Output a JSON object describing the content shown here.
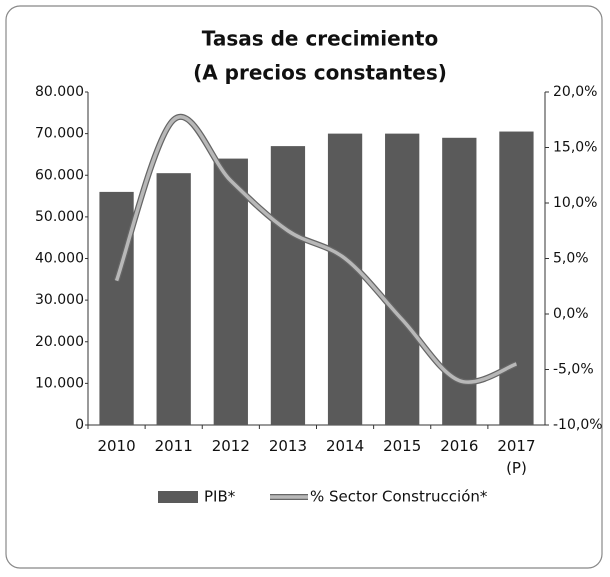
{
  "chart_data": {
    "type": "bar_line",
    "title": "Tasas de crecimiento",
    "subtitle": "(A precios constantes)",
    "categories": [
      "2010",
      "2011",
      "2012",
      "2013",
      "2014",
      "2015",
      "2016",
      "2017\n(P)"
    ],
    "series": [
      {
        "name": "PIB*",
        "type": "bar",
        "color": "#5a5a5a",
        "values": [
          56000,
          60500,
          64000,
          67000,
          70000,
          70000,
          69000,
          70500
        ]
      },
      {
        "name": "% Sector Construcción*",
        "type": "line",
        "axis": "y2",
        "color": "#b8b8b8",
        "values": [
          3,
          17.5,
          12,
          7.5,
          5,
          -0.5,
          -6,
          -4.5
        ]
      }
    ],
    "ylim": [
      0,
      80000
    ],
    "yticks": [
      0,
      {
        "value": 10000,
        "label": "10.000"
      },
      {
        "value": 20000,
        "label": "20.000"
      },
      {
        "value": 30000,
        "label": "30.000"
      },
      {
        "value": 40000,
        "label": "40.000"
      },
      {
        "value": 50000,
        "label": "50.000"
      },
      {
        "value": 60000,
        "label": "60.000"
      },
      {
        "value": 70000,
        "label": "70.000"
      },
      {
        "value": 80000,
        "label": "80.000"
      }
    ],
    "y2lim": [
      -10,
      20
    ],
    "y2ticks": [
      {
        "value": -10,
        "label": "-10,0%"
      },
      {
        "value": -5,
        "label": "-5,0%"
      },
      {
        "value": 0,
        "label": "0,0%"
      },
      {
        "value": 5,
        "label": "5,0%"
      },
      {
        "value": 10,
        "label": "10,0%"
      },
      {
        "value": 15,
        "label": "15,0%"
      },
      {
        "value": 20,
        "label": "20,0%"
      }
    ],
    "legend": "bottom"
  }
}
